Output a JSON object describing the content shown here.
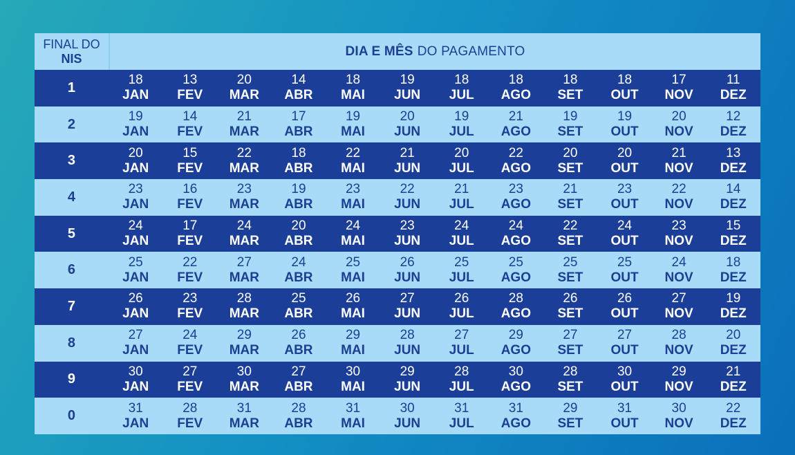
{
  "header": {
    "left_line1": "FINAL DO",
    "left_line2": "NIS",
    "right_bold": "DIA E MÊS",
    "right_rest": "DO PAGAMENTO"
  },
  "months": [
    "JAN",
    "FEV",
    "MAR",
    "ABR",
    "MAI",
    "JUN",
    "JUL",
    "AGO",
    "SET",
    "OUT",
    "NOV",
    "DEZ"
  ],
  "rows": [
    {
      "nis": "1",
      "days": [
        "18",
        "13",
        "20",
        "14",
        "18",
        "19",
        "18",
        "18",
        "18",
        "18",
        "17",
        "11"
      ]
    },
    {
      "nis": "2",
      "days": [
        "19",
        "14",
        "21",
        "17",
        "19",
        "20",
        "19",
        "21",
        "19",
        "19",
        "20",
        "12"
      ]
    },
    {
      "nis": "3",
      "days": [
        "20",
        "15",
        "22",
        "18",
        "22",
        "21",
        "20",
        "22",
        "20",
        "20",
        "21",
        "13"
      ]
    },
    {
      "nis": "4",
      "days": [
        "23",
        "16",
        "23",
        "19",
        "23",
        "22",
        "21",
        "23",
        "21",
        "23",
        "22",
        "14"
      ]
    },
    {
      "nis": "5",
      "days": [
        "24",
        "17",
        "24",
        "20",
        "24",
        "23",
        "24",
        "24",
        "22",
        "24",
        "23",
        "15"
      ]
    },
    {
      "nis": "6",
      "days": [
        "25",
        "22",
        "27",
        "24",
        "25",
        "26",
        "25",
        "25",
        "25",
        "25",
        "24",
        "18"
      ]
    },
    {
      "nis": "7",
      "days": [
        "26",
        "23",
        "28",
        "25",
        "26",
        "27",
        "26",
        "28",
        "26",
        "26",
        "27",
        "19"
      ]
    },
    {
      "nis": "8",
      "days": [
        "27",
        "24",
        "29",
        "26",
        "29",
        "28",
        "27",
        "29",
        "27",
        "27",
        "28",
        "20"
      ]
    },
    {
      "nis": "9",
      "days": [
        "30",
        "27",
        "30",
        "27",
        "30",
        "29",
        "28",
        "30",
        "28",
        "30",
        "29",
        "21"
      ]
    },
    {
      "nis": "0",
      "days": [
        "31",
        "28",
        "31",
        "28",
        "31",
        "30",
        "31",
        "31",
        "29",
        "31",
        "30",
        "22"
      ]
    }
  ]
}
